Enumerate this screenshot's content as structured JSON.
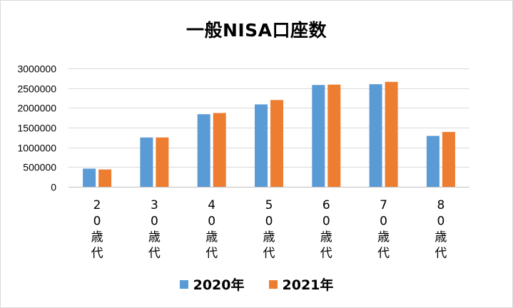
{
  "chart_data": {
    "type": "bar",
    "title": "一般NISA口座数",
    "xlabel": "",
    "ylabel": "",
    "ylim": [
      0,
      3000000
    ],
    "yticks": [
      0,
      500000,
      1000000,
      1500000,
      2000000,
      2500000,
      3000000
    ],
    "ytick_labels": [
      "0",
      "500000",
      "1000000",
      "1500000",
      "2000000",
      "2500000",
      "3000000"
    ],
    "categories": [
      "20歳代",
      "30歳代",
      "40歳代",
      "50歳代",
      "60歳代",
      "70歳代",
      "80歳代"
    ],
    "category_lines": [
      [
        "2",
        "0",
        "歳",
        "代"
      ],
      [
        "3",
        "0",
        "歳",
        "代"
      ],
      [
        "4",
        "0",
        "歳",
        "代"
      ],
      [
        "5",
        "0",
        "歳",
        "代"
      ],
      [
        "6",
        "0",
        "歳",
        "代"
      ],
      [
        "7",
        "0",
        "歳",
        "代"
      ],
      [
        "8",
        "0",
        "歳",
        "代"
      ]
    ],
    "series": [
      {
        "name": "2020年",
        "color": "#5b9bd5",
        "values": [
          460000,
          1250000,
          1840000,
          2090000,
          2580000,
          2600000,
          1290000
        ]
      },
      {
        "name": "2021年",
        "color": "#ed7d31",
        "values": [
          440000,
          1250000,
          1870000,
          2200000,
          2590000,
          2660000,
          1390000
        ]
      }
    ],
    "grid": true,
    "legend_position": "bottom"
  }
}
